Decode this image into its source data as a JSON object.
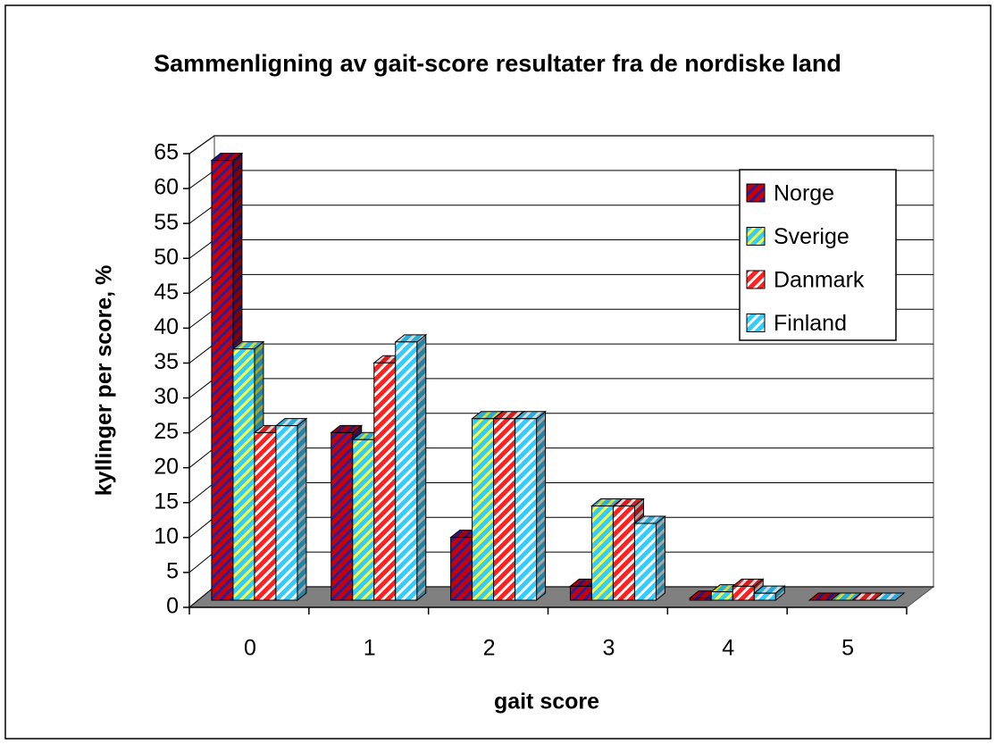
{
  "chart_data": {
    "type": "bar3d",
    "title": "Sammenligning av gait-score resultater fra de nordiske land",
    "xlabel": "gait score",
    "ylabel": "kyllinger per score, %",
    "categories": [
      "0",
      "1",
      "2",
      "3",
      "4",
      "5"
    ],
    "series": [
      {
        "name": "Norge",
        "color": "#cc0000",
        "hatch": "#2020a0",
        "values": [
          63,
          24,
          9,
          2,
          0.3,
          0
        ]
      },
      {
        "name": "Sverige",
        "color": "#33ccff",
        "hatch": "#ffff33",
        "values": [
          36,
          23,
          26,
          13.5,
          1.2,
          0
        ]
      },
      {
        "name": "Danmark",
        "color": "#ff2020",
        "hatch": "#ffffff",
        "values": [
          24,
          34,
          26,
          13.5,
          2,
          0
        ]
      },
      {
        "name": "Finland",
        "color": "#33ccff",
        "hatch": "#ffffff",
        "values": [
          25,
          37,
          26,
          11,
          1,
          0
        ]
      }
    ],
    "ylim": [
      0,
      65
    ],
    "yticks": [
      0,
      5,
      10,
      15,
      20,
      25,
      30,
      35,
      40,
      45,
      50,
      55,
      60,
      65
    ],
    "grid": true,
    "legend": "upper right"
  }
}
